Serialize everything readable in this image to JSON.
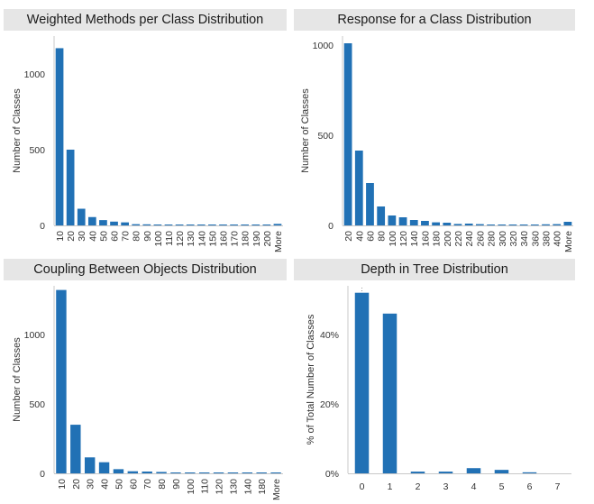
{
  "colors": {
    "bar": "#2171b5",
    "axis": "#c8c8c8",
    "title_bg": "#e6e6e6",
    "refline": "#9a9a9a"
  },
  "charts": [
    {
      "title": "Weighted Methods per Class Distribution",
      "ylabel": "Number of Classes",
      "yticks": [
        "0",
        "500",
        "1000"
      ],
      "categories": [
        "10",
        "20",
        "30",
        "40",
        "50",
        "60",
        "70",
        "80",
        "90",
        "100",
        "110",
        "120",
        "130",
        "140",
        "150",
        "160",
        "170",
        "180",
        "190",
        "200",
        "More"
      ]
    },
    {
      "title": "Response for a Class Distribution",
      "ylabel": "Number of Classes",
      "yticks": [
        "0",
        "500",
        "1000"
      ],
      "categories": [
        "20",
        "40",
        "60",
        "80",
        "100",
        "120",
        "140",
        "160",
        "180",
        "200",
        "220",
        "240",
        "260",
        "280",
        "300",
        "320",
        "340",
        "360",
        "380",
        "400",
        "More"
      ]
    },
    {
      "title": "Coupling Between Objects Distribution",
      "ylabel": "Number of Classes",
      "yticks": [
        "0",
        "500",
        "1000"
      ],
      "categories": [
        "10",
        "20",
        "30",
        "40",
        "50",
        "60",
        "70",
        "80",
        "90",
        "100",
        "110",
        "120",
        "130",
        "140",
        "180",
        "More"
      ]
    },
    {
      "title": "Depth in Tree Distribution",
      "ylabel": "% of Total Number of Classes",
      "yticks": [
        "0%",
        "20%",
        "40%"
      ],
      "categories": [
        "0",
        "1",
        "2",
        "3",
        "4",
        "5",
        "6",
        "7"
      ]
    }
  ],
  "chart_data": [
    {
      "type": "bar",
      "title": "Weighted Methods per Class Distribution",
      "xlabel": "",
      "ylabel": "Number of Classes",
      "categories": [
        "10",
        "20",
        "30",
        "40",
        "50",
        "60",
        "70",
        "80",
        "90",
        "100",
        "110",
        "120",
        "130",
        "140",
        "150",
        "160",
        "170",
        "180",
        "190",
        "200",
        "More"
      ],
      "values": [
        1170,
        500,
        110,
        55,
        35,
        25,
        20,
        8,
        7,
        5,
        4,
        3,
        2,
        2,
        1,
        1,
        1,
        1,
        1,
        1,
        10
      ],
      "ylim": [
        0,
        1250
      ],
      "grid": false
    },
    {
      "type": "bar",
      "title": "Response for a Class Distribution",
      "xlabel": "",
      "ylabel": "Number of Classes",
      "categories": [
        "20",
        "40",
        "60",
        "80",
        "100",
        "120",
        "140",
        "160",
        "180",
        "200",
        "220",
        "240",
        "260",
        "280",
        "300",
        "320",
        "340",
        "360",
        "380",
        "400",
        "More"
      ],
      "values": [
        1010,
        415,
        235,
        105,
        55,
        45,
        30,
        25,
        17,
        15,
        8,
        10,
        7,
        5,
        3,
        2,
        1,
        1,
        6,
        7,
        20
      ],
      "ylim": [
        0,
        1050
      ],
      "grid": false
    },
    {
      "type": "bar",
      "title": "Coupling Between Objects Distribution",
      "xlabel": "",
      "ylabel": "Number of Classes",
      "categories": [
        "10",
        "20",
        "30",
        "40",
        "50",
        "60",
        "70",
        "80",
        "90",
        "100",
        "110",
        "120",
        "130",
        "140",
        "180",
        "More"
      ],
      "values": [
        1320,
        350,
        115,
        80,
        30,
        15,
        13,
        10,
        6,
        3,
        1,
        1,
        1,
        1,
        1,
        1
      ],
      "ylim": [
        0,
        1350
      ],
      "grid": false
    },
    {
      "type": "bar",
      "title": "Depth in Tree Distribution",
      "xlabel": "",
      "ylabel": "% of Total Number of Classes",
      "categories": [
        "0",
        "1",
        "2",
        "3",
        "4",
        "5",
        "6",
        "7"
      ],
      "values": [
        52,
        46,
        0.5,
        0.5,
        1.5,
        1,
        0.3,
        0
      ],
      "ylim": [
        0,
        54
      ],
      "unit": "%",
      "grid": false
    }
  ]
}
